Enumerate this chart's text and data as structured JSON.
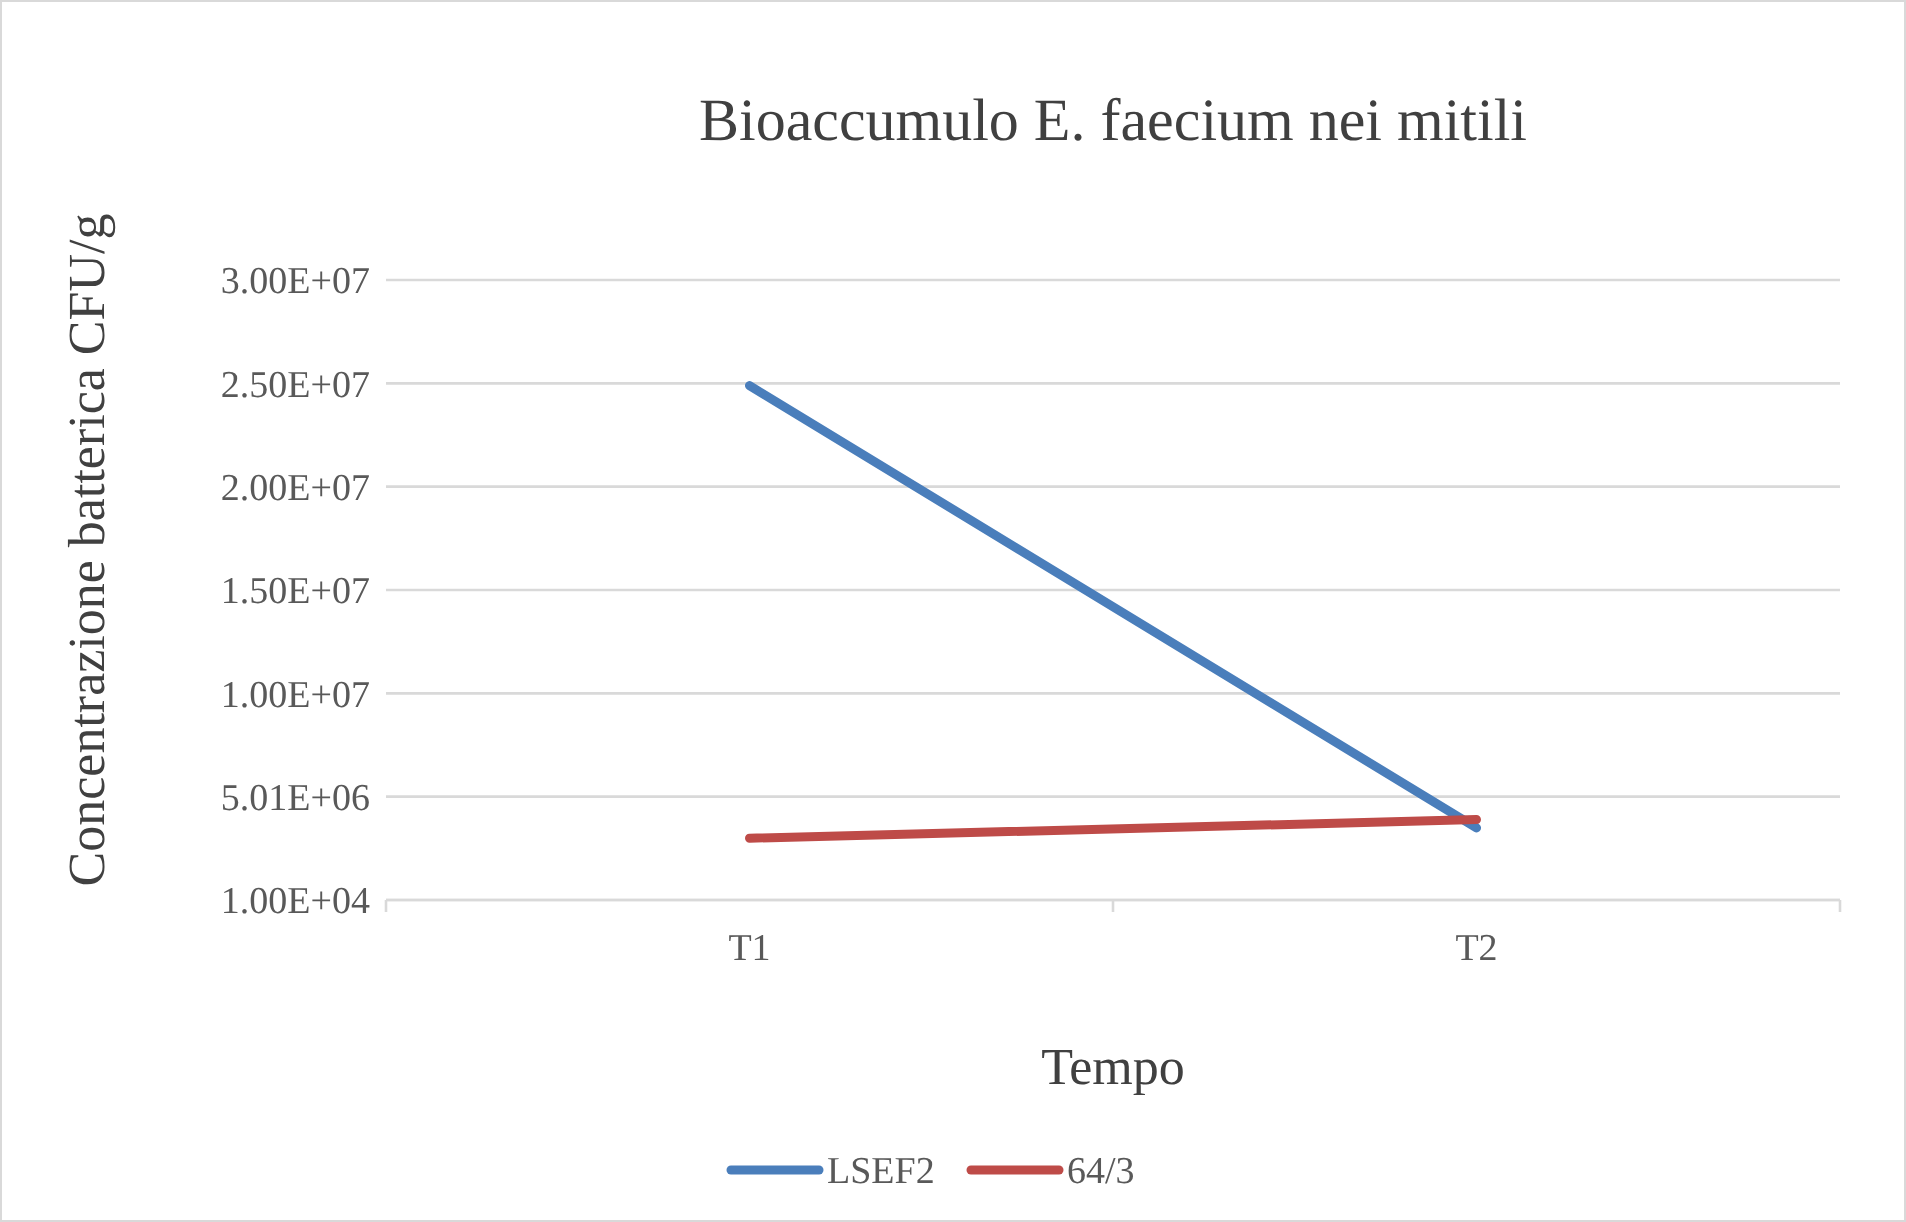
{
  "chart_data": {
    "type": "line",
    "title": "Bioaccumulo E. faecium nei mitili",
    "xlabel": "Tempo",
    "ylabel": "Concentrazione batterica CFU/g",
    "categories": [
      "T1",
      "T2"
    ],
    "series": [
      {
        "name": "LSEF2",
        "color": "#4a7ebb",
        "values": [
          24900000,
          3500000
        ]
      },
      {
        "name": "64/3",
        "color": "#be4b48",
        "values": [
          3000000,
          3900000
        ]
      }
    ],
    "ylim": [
      10000,
      30010000
    ],
    "yticks": [
      {
        "value": 10000,
        "label": "1.00E+04"
      },
      {
        "value": 5010000,
        "label": "5.01E+06"
      },
      {
        "value": 10010000,
        "label": "1.00E+07"
      },
      {
        "value": 15010000,
        "label": "1.50E+07"
      },
      {
        "value": 20010000,
        "label": "2.00E+07"
      },
      {
        "value": 25010000,
        "label": "2.50E+07"
      },
      {
        "value": 30010000,
        "label": "3.00E+07"
      }
    ],
    "grid": "y",
    "legend": "bottom",
    "marker": "none",
    "line_style": "solid"
  }
}
